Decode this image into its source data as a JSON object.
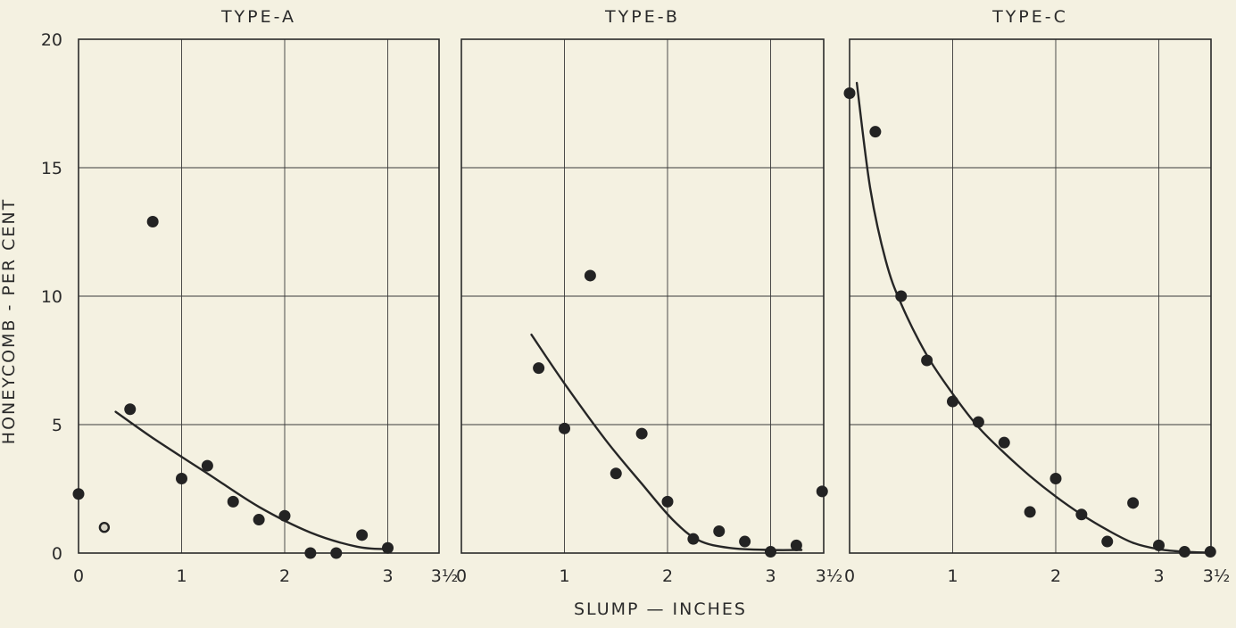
{
  "chart_data": {
    "type": "scatter",
    "ylabel": "HONEYCOMB - PER CENT",
    "xlabel": "SLUMP — INCHES",
    "ylim": [
      0,
      20
    ],
    "yticks": [
      0,
      5,
      10,
      15,
      20
    ],
    "ytick_labels": [
      "0",
      "5",
      "10",
      "15",
      "20"
    ],
    "xlim": [
      0,
      3.5
    ],
    "xticks": [
      0,
      1,
      2,
      3,
      3.5
    ],
    "xtick_labels": [
      "0",
      "1",
      "2",
      "3",
      "3½"
    ],
    "grid": true,
    "panels": [
      {
        "title": "TYPE-A",
        "points": [
          {
            "x": 0,
            "y": 2.3,
            "open": false
          },
          {
            "x": 0.25,
            "y": 1.0,
            "open": true
          },
          {
            "x": 0.5,
            "y": 5.6,
            "open": false
          },
          {
            "x": 0.72,
            "y": 12.9,
            "open": false
          },
          {
            "x": 1.0,
            "y": 2.9,
            "open": false
          },
          {
            "x": 1.25,
            "y": 3.4,
            "open": false
          },
          {
            "x": 1.5,
            "y": 2.0,
            "open": false
          },
          {
            "x": 1.75,
            "y": 1.3,
            "open": false
          },
          {
            "x": 2.0,
            "y": 1.45,
            "open": false
          },
          {
            "x": 2.25,
            "y": 0,
            "open": false
          },
          {
            "x": 2.5,
            "y": 0,
            "open": false
          },
          {
            "x": 2.75,
            "y": 0.7,
            "open": false
          },
          {
            "x": 3.0,
            "y": 0.2,
            "open": false
          }
        ],
        "curve": [
          [
            0.36,
            5.5
          ],
          [
            0.75,
            4.4
          ],
          [
            1.25,
            3.1
          ],
          [
            1.75,
            1.8
          ],
          [
            2.25,
            0.8
          ],
          [
            2.7,
            0.25
          ],
          [
            3.0,
            0.15
          ]
        ]
      },
      {
        "title": "TYPE-B",
        "points": [
          {
            "x": 0.75,
            "y": 7.2,
            "open": false
          },
          {
            "x": 1.0,
            "y": 4.85,
            "open": false
          },
          {
            "x": 1.25,
            "y": 10.8,
            "open": false
          },
          {
            "x": 1.5,
            "y": 3.1,
            "open": false
          },
          {
            "x": 1.75,
            "y": 4.65,
            "open": false
          },
          {
            "x": 2.0,
            "y": 2.0,
            "open": false
          },
          {
            "x": 2.25,
            "y": 0.55,
            "open": false
          },
          {
            "x": 2.5,
            "y": 0.85,
            "open": false
          },
          {
            "x": 2.75,
            "y": 0.45,
            "open": false
          },
          {
            "x": 3.0,
            "y": 0.05,
            "open": false
          },
          {
            "x": 3.25,
            "y": 0.3,
            "open": false
          },
          {
            "x": 3.5,
            "y": 2.4,
            "open": false
          }
        ],
        "curve": [
          [
            0.68,
            8.5
          ],
          [
            1.0,
            6.6
          ],
          [
            1.4,
            4.4
          ],
          [
            1.75,
            2.7
          ],
          [
            2.05,
            1.3
          ],
          [
            2.3,
            0.5
          ],
          [
            2.6,
            0.2
          ],
          [
            3.0,
            0.12
          ],
          [
            3.3,
            0.12
          ]
        ]
      },
      {
        "title": "TYPE-C",
        "points": [
          {
            "x": 0,
            "y": 17.9,
            "open": false
          },
          {
            "x": 0.25,
            "y": 16.4,
            "open": false
          },
          {
            "x": 0.5,
            "y": 10.0,
            "open": false
          },
          {
            "x": 0.75,
            "y": 7.5,
            "open": false
          },
          {
            "x": 1.0,
            "y": 5.9,
            "open": false
          },
          {
            "x": 1.25,
            "y": 5.1,
            "open": false
          },
          {
            "x": 1.5,
            "y": 4.3,
            "open": false
          },
          {
            "x": 1.75,
            "y": 1.6,
            "open": false
          },
          {
            "x": 2.0,
            "y": 2.9,
            "open": false
          },
          {
            "x": 2.25,
            "y": 1.5,
            "open": false
          },
          {
            "x": 2.5,
            "y": 0.45,
            "open": false
          },
          {
            "x": 2.75,
            "y": 1.95,
            "open": false
          },
          {
            "x": 3.0,
            "y": 0.3,
            "open": false
          },
          {
            "x": 3.25,
            "y": 0.05,
            "open": false
          },
          {
            "x": 3.5,
            "y": 0.05,
            "open": false
          }
        ],
        "curve": [
          [
            0.07,
            18.3
          ],
          [
            0.2,
            14.2
          ],
          [
            0.35,
            11.4
          ],
          [
            0.5,
            9.7
          ],
          [
            0.75,
            7.7
          ],
          [
            1.0,
            6.2
          ],
          [
            1.25,
            4.9
          ],
          [
            1.5,
            3.9
          ],
          [
            1.75,
            3.0
          ],
          [
            2.0,
            2.2
          ],
          [
            2.25,
            1.5
          ],
          [
            2.5,
            0.9
          ],
          [
            2.75,
            0.4
          ],
          [
            3.0,
            0.15
          ],
          [
            3.25,
            0.05
          ],
          [
            3.45,
            0.02
          ]
        ]
      }
    ]
  }
}
